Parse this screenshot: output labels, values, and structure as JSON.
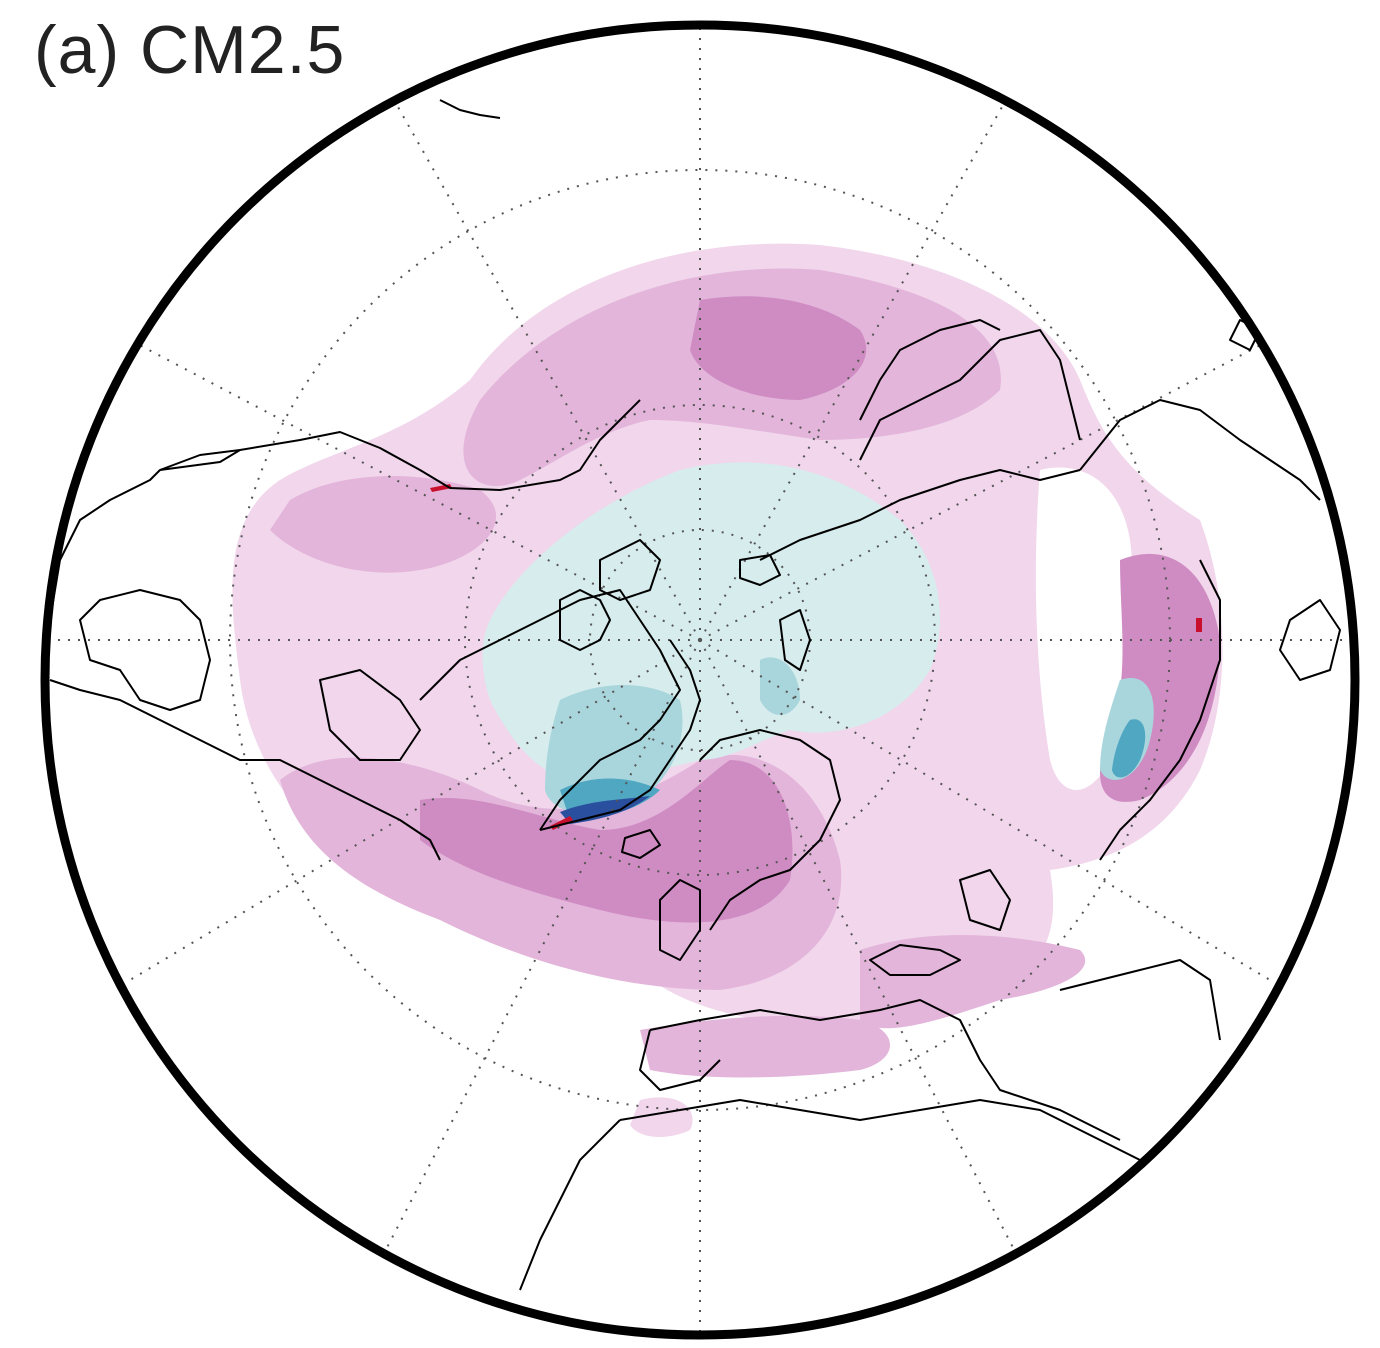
{
  "panel": {
    "label": "(a) CM2.5"
  },
  "map": {
    "projection": "north-polar-stereographic",
    "graticule": {
      "latitude_circles": 3,
      "meridians": 12,
      "style": "dotted"
    },
    "colors": {
      "background": "#ffffff",
      "pale_magenta": "#f1d6ec",
      "light_magenta": "#e3b5da",
      "medium_magenta": "#cf8cc3",
      "dark_magenta": "#a8569b",
      "pale_cyan": "#d7ecec",
      "light_cyan": "#a9d6dc",
      "medium_cyan": "#4fa7c2",
      "dark_blue": "#2a4f9e",
      "red": "#c8102e",
      "coastline": "#000000",
      "frame": "#000000"
    }
  }
}
